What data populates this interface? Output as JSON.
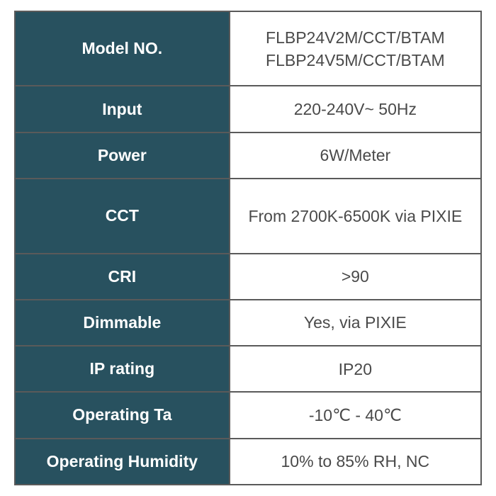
{
  "spec_table": {
    "type": "table",
    "label_bg_color": "#28515f",
    "label_text_color": "#ffffff",
    "value_bg_color": "#ffffff",
    "value_text_color": "#4a4a4a",
    "border_color": "#5a5a5a",
    "border_width": 2,
    "label_font_size": 23,
    "label_font_weight": "bold",
    "value_font_size": 23,
    "rows": [
      {
        "label": "Model NO.",
        "value": "FLBP24V2M/CCT/BTAM\nFLBP24V5M/CCT/BTAM",
        "height_class": "tall"
      },
      {
        "label": "Input",
        "value": "220-240V~ 50Hz",
        "height_class": "normal"
      },
      {
        "label": "Power",
        "value": "6W/Meter",
        "height_class": "normal"
      },
      {
        "label": "CCT",
        "value": "From 2700K-6500K via PIXIE",
        "height_class": "tall"
      },
      {
        "label": "CRI",
        "value": ">90",
        "height_class": "normal"
      },
      {
        "label": "Dimmable",
        "value": "Yes, via PIXIE",
        "height_class": "normal"
      },
      {
        "label": "IP rating",
        "value": "IP20",
        "height_class": "normal"
      },
      {
        "label": "Operating Ta",
        "value": "-10℃ - 40℃",
        "height_class": "normal"
      },
      {
        "label": "Operating Humidity",
        "value": "10% to 85% RH, NC",
        "height_class": "normal"
      }
    ]
  }
}
